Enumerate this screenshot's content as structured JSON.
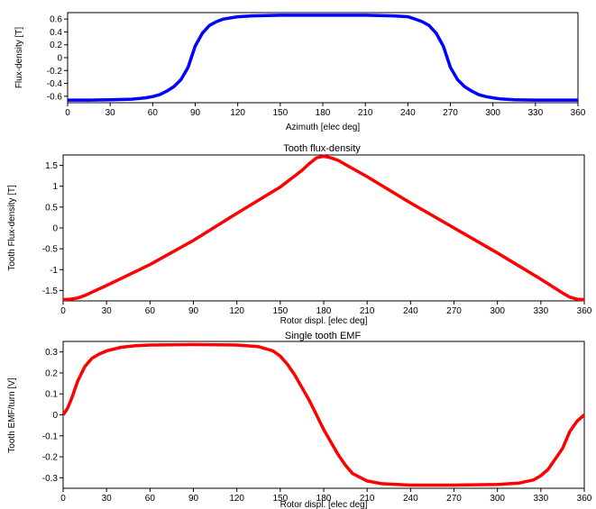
{
  "chart_data": [
    {
      "type": "line",
      "title": "",
      "xlabel": "Azimuth [elec deg]",
      "ylabel": "Flux-density [T]",
      "xlim": [
        0,
        360
      ],
      "ylim": [
        -0.7,
        0.7
      ],
      "xticks": [
        "0",
        "30",
        "60",
        "90",
        "120",
        "150",
        "180",
        "210",
        "240",
        "270",
        "300",
        "330",
        "360"
      ],
      "yticks": [
        "0.6",
        "0.4",
        "0.2",
        "0",
        "-0.2",
        "-0.4",
        "-0.6"
      ],
      "ytick_values": [
        0.6,
        0.4,
        0.2,
        0,
        -0.2,
        -0.4,
        -0.6
      ],
      "color": "#0000ff",
      "grid": false,
      "series": [
        {
          "x": [
            0,
            15,
            30,
            45,
            55,
            60,
            65,
            70,
            75,
            80,
            85,
            90,
            95,
            100,
            105,
            110,
            120,
            130,
            150,
            180,
            210,
            230,
            240,
            245,
            250,
            255,
            260,
            265,
            270,
            275,
            280,
            285,
            290,
            295,
            300,
            305,
            315,
            330,
            345,
            360
          ],
          "values": [
            -0.66,
            -0.66,
            -0.655,
            -0.645,
            -0.625,
            -0.605,
            -0.575,
            -0.52,
            -0.45,
            -0.34,
            -0.15,
            0.18,
            0.38,
            0.5,
            0.56,
            0.6,
            0.635,
            0.65,
            0.66,
            0.66,
            0.66,
            0.65,
            0.635,
            0.6,
            0.56,
            0.5,
            0.38,
            0.18,
            -0.15,
            -0.34,
            -0.45,
            -0.52,
            -0.575,
            -0.605,
            -0.625,
            -0.64,
            -0.655,
            -0.66,
            -0.66,
            -0.66
          ]
        }
      ]
    },
    {
      "type": "line",
      "title": "Tooth flux-density",
      "xlabel": "Rotor displ. [elec deg]",
      "ylabel": "Tooth Flux-density [T]",
      "xlim": [
        0,
        360
      ],
      "ylim": [
        -1.75,
        1.75
      ],
      "xticks": [
        "0",
        "30",
        "60",
        "90",
        "120",
        "150",
        "180",
        "210",
        "240",
        "270",
        "300",
        "330",
        "360"
      ],
      "yticks": [
        "1.5",
        "1",
        "0.5",
        "0",
        "-0.5",
        "-1",
        "-1.5"
      ],
      "ytick_values": [
        1.5,
        1,
        0.5,
        0,
        -0.5,
        -1,
        -1.5
      ],
      "color": "#ff0000",
      "grid": false,
      "series": [
        {
          "x": [
            0,
            5,
            10,
            15,
            20,
            30,
            60,
            90,
            120,
            150,
            165,
            170,
            175,
            180,
            185,
            190,
            195,
            210,
            240,
            270,
            300,
            330,
            340,
            345,
            350,
            355,
            360
          ],
          "values": [
            -1.72,
            -1.71,
            -1.68,
            -1.62,
            -1.54,
            -1.38,
            -0.88,
            -0.3,
            0.35,
            0.98,
            1.38,
            1.54,
            1.68,
            1.72,
            1.68,
            1.62,
            1.52,
            1.23,
            0.6,
            0.0,
            -0.6,
            -1.23,
            -1.45,
            -1.56,
            -1.66,
            -1.71,
            -1.72
          ]
        }
      ]
    },
    {
      "type": "line",
      "title": "Single tooth EMF",
      "xlabel": "Rotor displ. [elec deg]",
      "ylabel": "Tooth EMF/turn [V]",
      "xlim": [
        0,
        360
      ],
      "ylim": [
        -0.35,
        0.35
      ],
      "xticks": [
        "0",
        "30",
        "60",
        "90",
        "120",
        "150",
        "180",
        "210",
        "240",
        "270",
        "300",
        "330",
        "360"
      ],
      "yticks": [
        "0.3",
        "0.2",
        "0.1",
        "0",
        "-0.1",
        "-0.2",
        "-0.3"
      ],
      "ytick_values": [
        0.3,
        0.2,
        0.1,
        0,
        -0.1,
        -0.2,
        -0.3
      ],
      "color": "#ff0000",
      "grid": false,
      "series": [
        {
          "x": [
            0,
            3,
            6,
            10,
            15,
            20,
            25,
            30,
            40,
            50,
            60,
            90,
            120,
            135,
            145,
            150,
            155,
            160,
            165,
            170,
            175,
            180,
            185,
            190,
            195,
            200,
            210,
            220,
            240,
            270,
            300,
            315,
            325,
            330,
            335,
            340,
            345,
            350,
            355,
            360
          ],
          "values": [
            0.0,
            0.03,
            0.08,
            0.16,
            0.23,
            0.27,
            0.29,
            0.305,
            0.322,
            0.33,
            0.333,
            0.335,
            0.333,
            0.325,
            0.305,
            0.28,
            0.24,
            0.19,
            0.13,
            0.07,
            0.0,
            -0.07,
            -0.13,
            -0.19,
            -0.24,
            -0.28,
            -0.315,
            -0.328,
            -0.335,
            -0.335,
            -0.332,
            -0.325,
            -0.31,
            -0.29,
            -0.26,
            -0.21,
            -0.16,
            -0.08,
            -0.03,
            0.0
          ]
        }
      ]
    }
  ]
}
